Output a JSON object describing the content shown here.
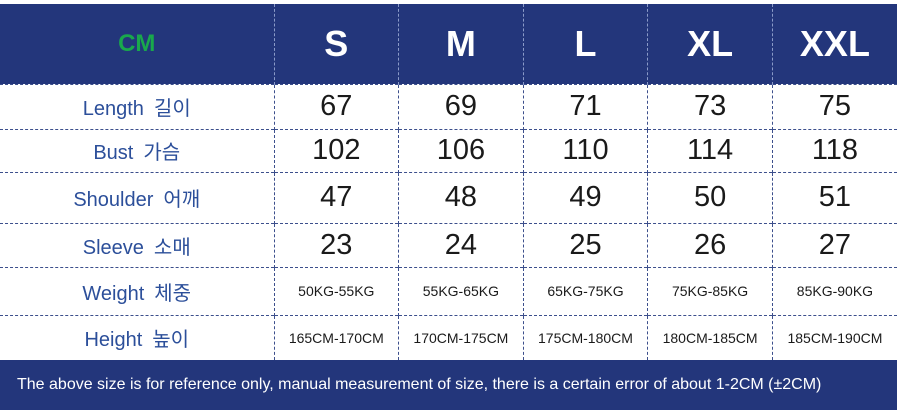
{
  "header": {
    "unit": "CM",
    "sizes": [
      "S",
      "M",
      "L",
      "XL",
      "XXL"
    ]
  },
  "rows": [
    {
      "label_en": "Length",
      "label_ko": "길이",
      "values": [
        "67",
        "69",
        "71",
        "73",
        "75"
      ]
    },
    {
      "label_en": "Bust",
      "label_ko": "가슴",
      "values": [
        "102",
        "106",
        "110",
        "114",
        "118"
      ]
    },
    {
      "label_en": "Shoulder",
      "label_ko": "어깨",
      "values": [
        "47",
        "48",
        "49",
        "50",
        "51"
      ]
    },
    {
      "label_en": "Sleeve",
      "label_ko": "소매",
      "values": [
        "23",
        "24",
        "25",
        "26",
        "27"
      ]
    },
    {
      "label_en": "Weight",
      "label_ko": "체중",
      "values": [
        "50KG-55KG",
        "55KG-65KG",
        "65KG-75KG",
        "75KG-85KG",
        "85KG-90KG"
      ]
    },
    {
      "label_en": "Height",
      "label_ko": "높이",
      "values": [
        "165CM-170CM",
        "170CM-175CM",
        "175CM-180CM",
        "180CM-185CM",
        "185CM-190CM"
      ]
    }
  ],
  "footer": {
    "note": "The above size is for reference only, manual measurement of size, there is a certain error of about 1-2CM  (±2CM)"
  },
  "colors": {
    "header_bg": "#23367b",
    "unit_text": "#19a84c",
    "label_text": "#2c4f9a"
  }
}
